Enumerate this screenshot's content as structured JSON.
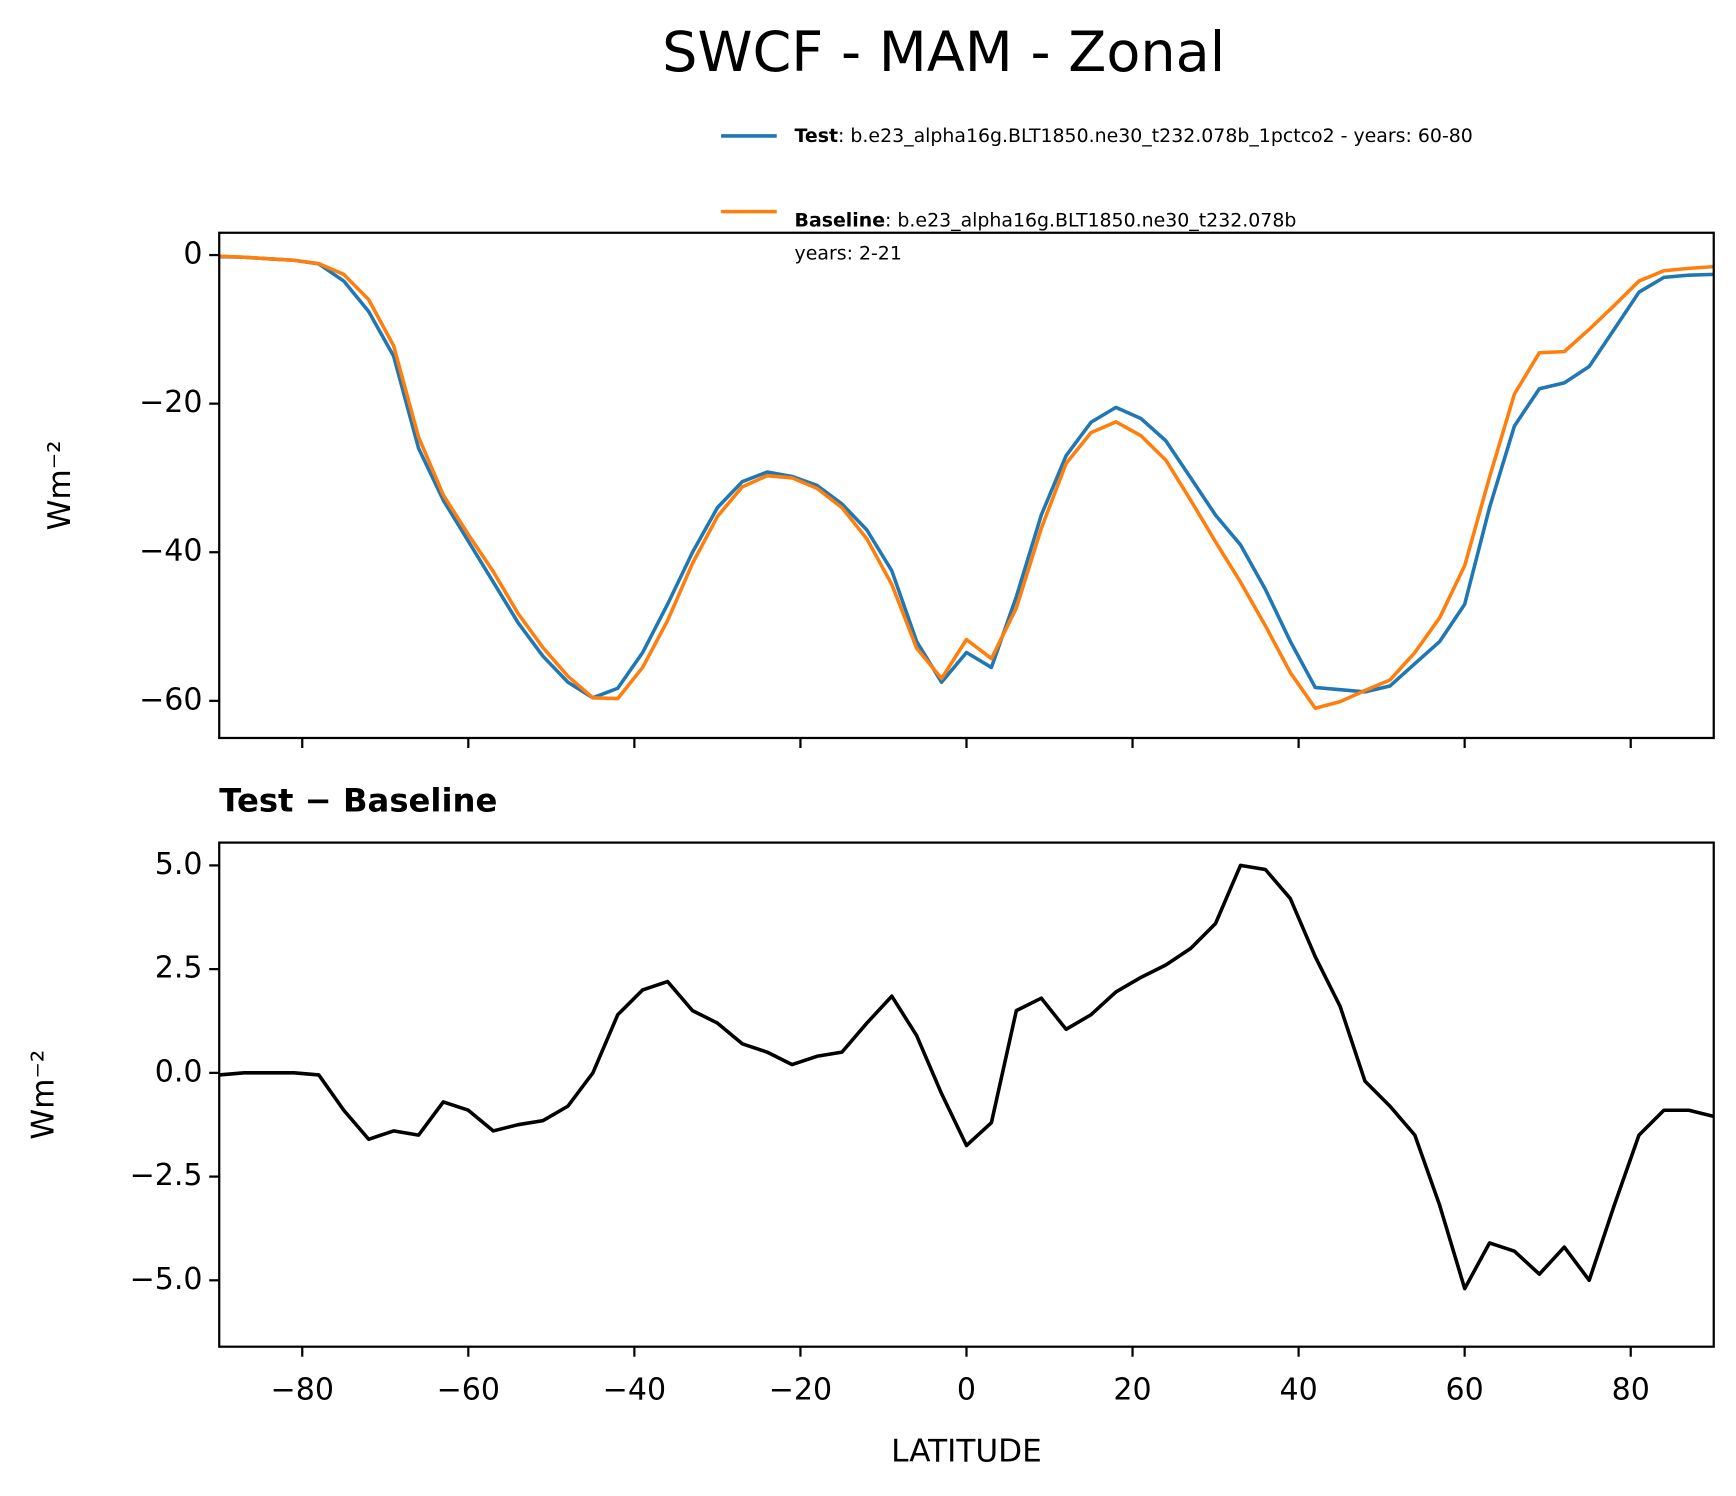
{
  "title": "SWCF - MAM - Zonal",
  "chart_data": [
    {
      "type": "line",
      "ylabel": "Wm⁻²",
      "xlim": [
        -90,
        90
      ],
      "ylim": [
        -65,
        3
      ],
      "xticks": [
        -80,
        -60,
        -40,
        -20,
        0,
        20,
        40,
        60,
        80
      ],
      "yticks": [
        {
          "value": -60,
          "label": "−60"
        },
        {
          "value": -40,
          "label": "−40"
        },
        {
          "value": -20,
          "label": "−20"
        },
        0
      ],
      "x": [
        -90,
        -87,
        -84,
        -81,
        -78,
        -75,
        -72,
        -69,
        -66,
        -63,
        -60,
        -57,
        -54,
        -51,
        -48,
        -45,
        -42,
        -39,
        -36,
        -33,
        -30,
        -27,
        -24,
        -21,
        -18,
        -15,
        -12,
        -9,
        -6,
        -3,
        0,
        3,
        6,
        9,
        12,
        15,
        18,
        21,
        24,
        27,
        30,
        33,
        36,
        39,
        42,
        45,
        48,
        51,
        54,
        57,
        60,
        63,
        66,
        69,
        72,
        75,
        78,
        81,
        84,
        87,
        90
      ],
      "series": [
        {
          "name": "Test",
          "description": [
            ": b.e23_alpha16g.BLT1850.ne30_t232.078b_1pctco2 - years: 60-80"
          ],
          "color": "#1f77b4",
          "values": [
            -0.2,
            -0.3,
            -0.5,
            -0.7,
            -1.2,
            -3.5,
            -7.6,
            -13.6,
            -26,
            -33,
            -38.5,
            -44,
            -49.5,
            -54,
            -57.5,
            -59.6,
            -58.3,
            -53.5,
            -47,
            -40,
            -34,
            -30.5,
            -29.2,
            -29.8,
            -31,
            -33.5,
            -37,
            -42.5,
            -52,
            -57.5,
            -53.5,
            -55.5,
            -46,
            -35,
            -27,
            -22.5,
            -20.5,
            -22,
            -25,
            -30,
            -35,
            -39,
            -45,
            -52,
            -58.2,
            -58.5,
            -58.8,
            -58,
            -55,
            -52,
            -47,
            -34,
            -23,
            -18,
            -17.2,
            -15,
            -10,
            -5,
            -3,
            -2.7,
            -2.6
          ]
        },
        {
          "name": "Baseline",
          "description": [
            ": b.e23_alpha16g.BLT1850.ne30_t232.078b",
            "years: 2-21"
          ],
          "color": "#ff7f0e",
          "values": [
            -0.15,
            -0.3,
            -0.5,
            -0.7,
            -1.15,
            -2.6,
            -6.0,
            -12.2,
            -24.5,
            -32.3,
            -37.6,
            -42.6,
            -48.25,
            -52.85,
            -56.7,
            -59.6,
            -59.7,
            -55.5,
            -49.2,
            -41.5,
            -35.2,
            -31.2,
            -29.7,
            -30.0,
            -31.4,
            -34,
            -38.2,
            -44.35,
            -52.9,
            -57,
            -51.75,
            -54.3,
            -47.5,
            -36.8,
            -28.05,
            -23.9,
            -22.45,
            -24.3,
            -27.6,
            -33,
            -38.6,
            -44,
            -49.9,
            -56.2,
            -61.0,
            -60.1,
            -58.6,
            -57.2,
            -53.5,
            -48.8,
            -41.8,
            -29.9,
            -18.7,
            -13.15,
            -13,
            -10,
            -6.8,
            -3.5,
            -2.1,
            -1.8,
            -1.55
          ]
        }
      ]
    },
    {
      "type": "line",
      "title": "Test − Baseline",
      "xlabel": "LATITUDE",
      "ylabel": "Wm⁻²",
      "xlim": [
        -90,
        90
      ],
      "ylim": [
        -6.6,
        5.55
      ],
      "xticks": [
        {
          "value": -80,
          "label": "−80"
        },
        {
          "value": -60,
          "label": "−60"
        },
        {
          "value": -40,
          "label": "−40"
        },
        {
          "value": -20,
          "label": "−20"
        },
        0,
        20,
        40,
        60,
        80
      ],
      "yticks": [
        {
          "value": -5,
          "label": "−5.0"
        },
        {
          "value": -2.5,
          "label": "−2.5"
        },
        {
          "value": 0,
          "label": "0.0"
        },
        2.5,
        {
          "value": 5,
          "label": "5.0"
        }
      ],
      "x": [
        -90,
        -87,
        -84,
        -81,
        -78,
        -75,
        -72,
        -69,
        -66,
        -63,
        -60,
        -57,
        -54,
        -51,
        -48,
        -45,
        -42,
        -39,
        -36,
        -33,
        -30,
        -27,
        -24,
        -21,
        -18,
        -15,
        -12,
        -9,
        -6,
        -3,
        0,
        3,
        6,
        9,
        12,
        15,
        18,
        21,
        24,
        27,
        30,
        33,
        36,
        39,
        42,
        45,
        48,
        51,
        54,
        57,
        60,
        63,
        66,
        69,
        72,
        75,
        78,
        81,
        84,
        87,
        90
      ],
      "series": [
        {
          "color": "#000000",
          "values": [
            -0.05,
            0,
            0,
            0,
            -0.05,
            -0.9,
            -1.6,
            -1.4,
            -1.5,
            -0.7,
            -0.9,
            -1.4,
            -1.25,
            -1.15,
            -0.8,
            0,
            1.4,
            2.0,
            2.2,
            1.5,
            1.2,
            0.7,
            0.5,
            0.2,
            0.4,
            0.5,
            1.2,
            1.85,
            0.9,
            -0.5,
            -1.75,
            -1.2,
            1.5,
            1.8,
            1.05,
            1.4,
            1.95,
            2.3,
            2.6,
            3.0,
            3.6,
            5.0,
            4.9,
            4.2,
            2.8,
            1.6,
            -0.2,
            -0.8,
            -1.5,
            -3.2,
            -5.2,
            -4.1,
            -4.3,
            -4.85,
            -4.2,
            -5.0,
            -3.2,
            -1.5,
            -0.9,
            -0.9,
            -1.05
          ]
        }
      ]
    }
  ]
}
